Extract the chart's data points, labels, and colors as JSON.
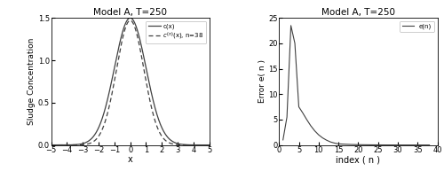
{
  "title": "Model A, T=250",
  "left_xlabel": "x",
  "left_ylabel": "Sludge Concentration",
  "left_xlim": [
    -5,
    5
  ],
  "left_ylim": [
    0,
    1.5
  ],
  "left_xticks": [
    -5,
    -4,
    -3,
    -2,
    -1,
    0,
    1,
    2,
    3,
    4,
    5
  ],
  "left_yticks": [
    0,
    0.5,
    1,
    1.5
  ],
  "legend_exact": "c(x)",
  "legend_approx": "c(n)(x), n=38",
  "right_xlabel": "index ( n )",
  "right_ylabel": "Error e( n )",
  "right_xlim": [
    0,
    40
  ],
  "right_ylim": [
    0,
    25
  ],
  "right_xticks": [
    0,
    5,
    10,
    15,
    20,
    25,
    30,
    35,
    40
  ],
  "right_yticks": [
    0,
    5,
    10,
    15,
    20,
    25
  ],
  "legend_error": "e(n)",
  "background_color": "#ffffff",
  "line_color": "#404040",
  "n_38": 38
}
